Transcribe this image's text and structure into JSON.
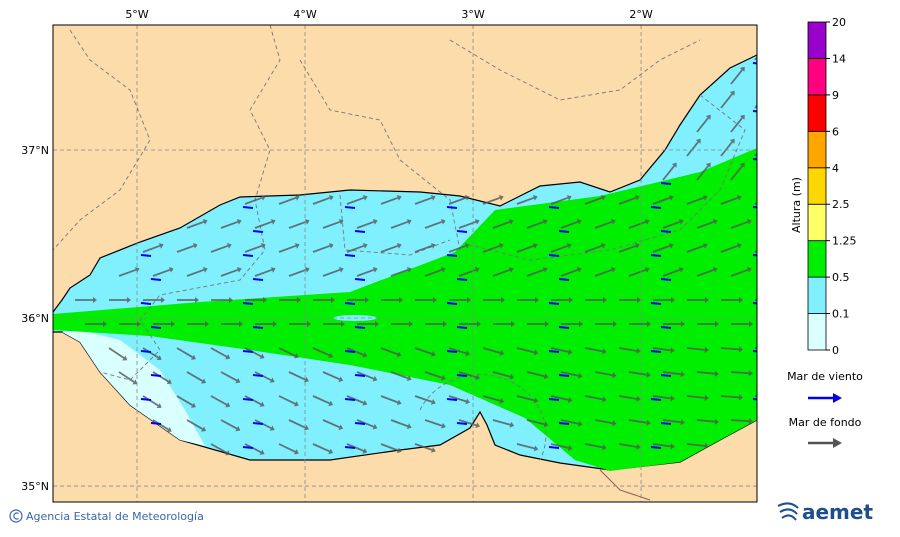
{
  "map": {
    "xlim": [
      -5.5,
      -1.31
    ],
    "ylim": [
      34.905,
      37.744
    ],
    "lon_ticks": [
      {
        "value": -5,
        "label": "5°W"
      },
      {
        "value": -4,
        "label": "4°W"
      },
      {
        "value": -3,
        "label": "3°W"
      },
      {
        "value": -2,
        "label": "2°W"
      }
    ],
    "lat_ticks": [
      {
        "value": 37,
        "label": "37°N"
      },
      {
        "value": 36,
        "label": "36°N"
      },
      {
        "value": 35,
        "label": "35°N"
      }
    ],
    "colorbar": {
      "title": "Altura (m)",
      "levels": [
        0,
        0.1,
        0.5,
        1.25,
        2.5,
        4,
        6,
        9,
        14,
        20
      ],
      "colors": [
        "#d9ffff",
        "#80f0ff",
        "#00ee00",
        "#ffff66",
        "#ffd700",
        "#ffa500",
        "#ff0000",
        "#ff0080",
        "#9900cc"
      ]
    },
    "legend": [
      {
        "label": "Mar de viento",
        "color": "#0000ee"
      },
      {
        "label": "Mar de fondo",
        "color": "#555555"
      }
    ]
  },
  "footer": {
    "credit": "Agencia Estatal de Meteorología",
    "logo": "aemet"
  }
}
